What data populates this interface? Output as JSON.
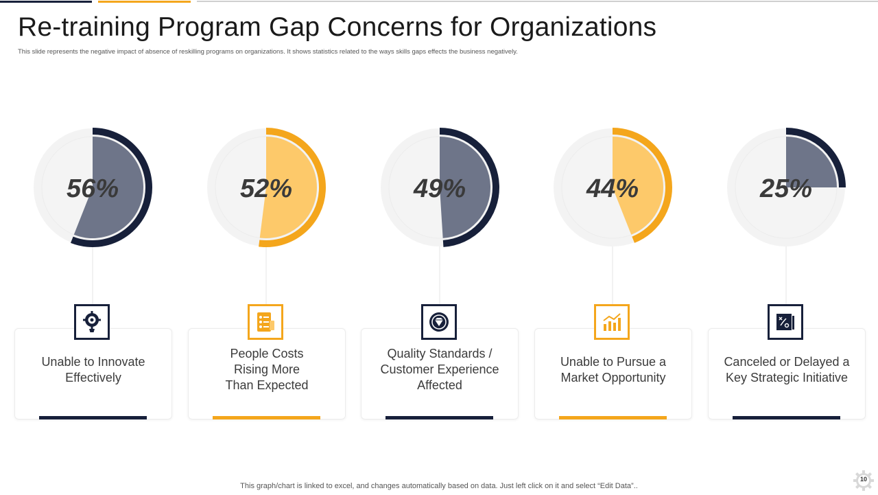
{
  "title": "Re-training Program Gap Concerns for Organizations",
  "subtitle": "This slide represents the negative impact  of absence of reskilling programs on organizations. It  shows statistics related to the ways skills gaps effects the business negatively.",
  "footer_note": "This graph/chart is linked to excel,  and changes automatically based on data. Just left click on it and select “Edit Data”..",
  "page_number": "10",
  "colors": {
    "navy": "#17203a",
    "navy_fill": "#6e7589",
    "orange": "#f4a61c",
    "orange_fill": "#fdc96a",
    "track": "#f3f3f3"
  },
  "cards": [
    {
      "label": "Unable to Innovate Effectively",
      "icon": "lightbulb-gear-icon",
      "accent": "navy"
    },
    {
      "label": "People Costs Rising More Than Expected",
      "icon": "checklist-icon",
      "accent": "orange"
    },
    {
      "label": "Quality Standards / Customer Experience Affected",
      "icon": "quality-badge-icon",
      "accent": "navy"
    },
    {
      "label": "Unable to Pursue a Market Opportunity",
      "icon": "growth-chart-icon",
      "accent": "orange"
    },
    {
      "label": "Canceled or Delayed a Key Strategic Initiative",
      "icon": "strategy-board-icon",
      "accent": "navy"
    }
  ],
  "chart_data": {
    "type": "pie",
    "title": "Re-training Program Gap Concerns for Organizations",
    "categories": [
      "Unable to Innovate Effectively",
      "People Costs Rising More Than Expected",
      "Quality Standards / Customer Experience Affected",
      "Unable to Pursue a Market Opportunity",
      "Canceled or Delayed a Key Strategic Initiative"
    ],
    "values": [
      56,
      52,
      49,
      44,
      25
    ],
    "labels": [
      "56%",
      "52%",
      "49%",
      "44%",
      "25%"
    ],
    "unit": "%"
  }
}
